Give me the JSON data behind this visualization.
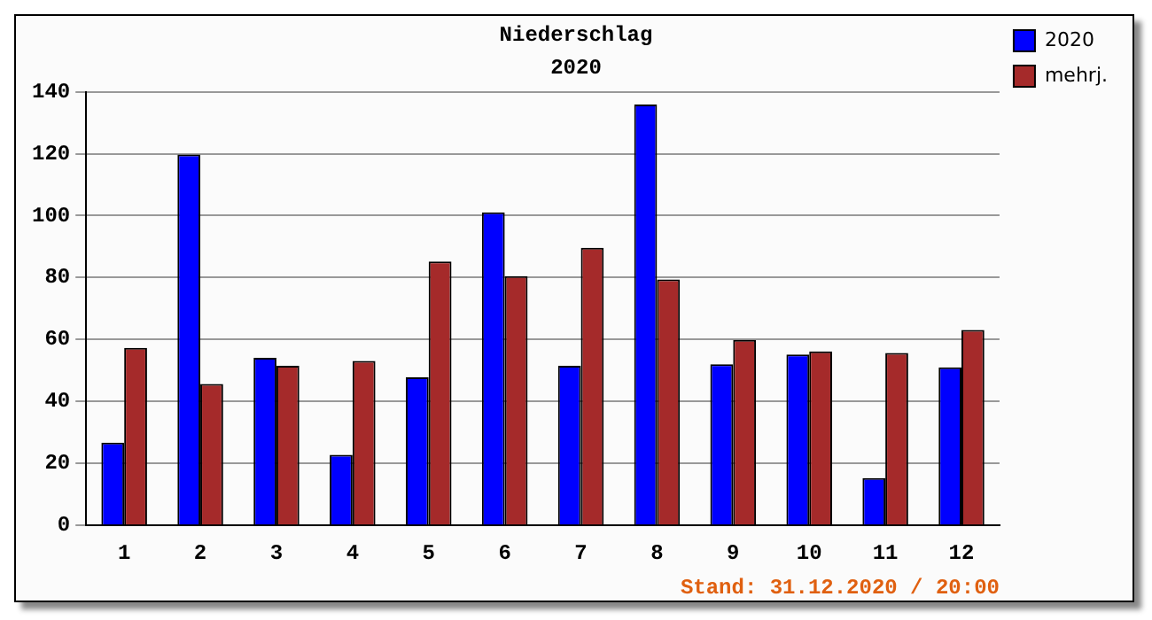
{
  "chart_data": {
    "type": "bar",
    "title": "Niederschlag",
    "subtitle": "2020",
    "categories": [
      "1",
      "2",
      "3",
      "4",
      "5",
      "6",
      "7",
      "8",
      "9",
      "10",
      "11",
      "12"
    ],
    "series": [
      {
        "name": "2020",
        "color": "#0000ff",
        "values": [
          26.7,
          119.7,
          54.1,
          22.8,
          47.8,
          101.1,
          51.5,
          135.9,
          52.0,
          55.2,
          15.3,
          51.0
        ]
      },
      {
        "name": "mehrj.",
        "color": "#a52a2a",
        "values": [
          57.3,
          45.7,
          51.5,
          53.1,
          85.2,
          80.5,
          89.6,
          79.4,
          59.9,
          56.2,
          55.7,
          63.1
        ]
      }
    ],
    "ylim": [
      0,
      140
    ],
    "yticks": [
      0,
      20,
      40,
      60,
      80,
      100,
      120,
      140
    ],
    "grid": "y",
    "legend": "top right",
    "annotations": [
      "Stand: 31.12.2020 / 20:00"
    ]
  }
}
